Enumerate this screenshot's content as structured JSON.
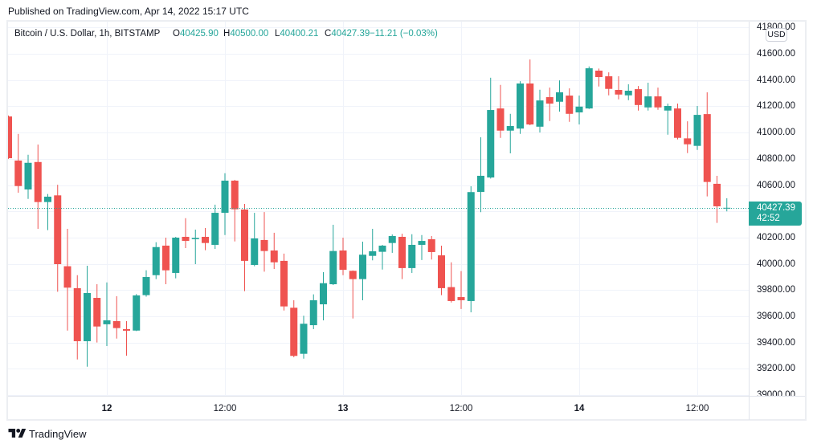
{
  "header": {
    "published": "Published on TradingView.com, Apr 14, 2022 15:17 UTC"
  },
  "legend": {
    "symbol": "Bitcoin / U.S. Dollar, 1h, BITSTAMP",
    "open_label": "O",
    "open": "40425.90",
    "high_label": "H",
    "high": "40500.00",
    "low_label": "L",
    "low": "40400.21",
    "close_label": "C",
    "close": "40427.39",
    "change": "−11.21 (−0.03%)"
  },
  "price_axis": {
    "currency": "USD",
    "last_price": "40427.39",
    "countdown": "42:52",
    "labels": [
      {
        "text": "41800.00",
        "value": 41800
      },
      {
        "text": "41600.00",
        "value": 41600
      },
      {
        "text": "41400.00",
        "value": 41400
      },
      {
        "text": "41200.00",
        "value": 41200
      },
      {
        "text": "41000.00",
        "value": 41000
      },
      {
        "text": "40800.00",
        "value": 40800
      },
      {
        "text": "40600.00",
        "value": 40600
      },
      {
        "text": "40200.00",
        "value": 40200
      },
      {
        "text": "40000.00",
        "value": 40000
      },
      {
        "text": "39800.00",
        "value": 39800
      },
      {
        "text": "39600.00",
        "value": 39600
      },
      {
        "text": "39400.00",
        "value": 39400
      },
      {
        "text": "39200.00",
        "value": 39200
      },
      {
        "text": "39000.00",
        "value": 39000
      }
    ]
  },
  "time_axis": {
    "labels": [
      {
        "text": "12",
        "index": 10,
        "kind": "day"
      },
      {
        "text": "12:00",
        "index": 22,
        "kind": "time"
      },
      {
        "text": "13",
        "index": 34,
        "kind": "day"
      },
      {
        "text": "12:00",
        "index": 46,
        "kind": "time"
      },
      {
        "text": "14",
        "index": 58,
        "kind": "day"
      },
      {
        "text": "12:00",
        "index": 70,
        "kind": "time"
      }
    ]
  },
  "footer": {
    "brand": "TradingView"
  },
  "colors": {
    "up": "#26a69a",
    "down": "#ef5350",
    "grid": "#f0f3fa",
    "border": "#e0e3eb",
    "text": "#131722"
  },
  "chart_data": {
    "type": "candlestick",
    "title": "Bitcoin / U.S. Dollar, 1h, BITSTAMP",
    "xlabel": "",
    "ylabel": "USD",
    "interval": "1h",
    "start": "Apr 11 14:00",
    "end": "Apr 14 15:00",
    "ylim": [
      38995,
      41845
    ],
    "yticks": [
      39000,
      39200,
      39400,
      39600,
      39800,
      40000,
      40200,
      40400,
      40600,
      40800,
      41000,
      41200,
      41400,
      41600,
      41800
    ],
    "xticks": [
      "12",
      "12:00",
      "13",
      "12:00",
      "14",
      "12:00"
    ],
    "grid": true,
    "last_price": 40427.39,
    "candle_format": [
      "open",
      "high",
      "low",
      "close"
    ],
    "candles": [
      [
        41123,
        41130,
        40800,
        40805
      ],
      [
        40787,
        40990,
        40542,
        40593
      ],
      [
        40567,
        40831,
        40495,
        40770
      ],
      [
        40776,
        40909,
        40267,
        40471
      ],
      [
        40471,
        40532,
        40257,
        40512
      ],
      [
        40522,
        40603,
        39788,
        39998
      ],
      [
        39982,
        40267,
        39492,
        39819
      ],
      [
        39815,
        39914,
        39272,
        39411
      ],
      [
        39411,
        39986,
        39217,
        39778
      ],
      [
        39741,
        39845,
        39401,
        39523
      ],
      [
        39540,
        39859,
        39374,
        39570
      ],
      [
        39564,
        39754,
        39431,
        39511
      ],
      [
        39503,
        39564,
        39301,
        39491
      ],
      [
        39492,
        39770,
        39488,
        39760
      ],
      [
        39762,
        39951,
        39750,
        39900
      ],
      [
        39914,
        40165,
        39884,
        40128
      ],
      [
        40139,
        40200,
        39845,
        39951
      ],
      [
        39931,
        40206,
        39890,
        40200
      ],
      [
        40206,
        40348,
        40120,
        40175
      ],
      [
        40188,
        40261,
        39998,
        40198
      ],
      [
        40206,
        40273,
        40104,
        40159
      ],
      [
        40145,
        40451,
        40114,
        40389
      ],
      [
        40389,
        40691,
        40220,
        40634
      ],
      [
        40634,
        40640,
        40171,
        40416
      ],
      [
        40414,
        40457,
        39792,
        40023
      ],
      [
        39992,
        40389,
        39982,
        40194
      ],
      [
        40182,
        40395,
        39941,
        40098
      ],
      [
        40102,
        40237,
        39961,
        40012
      ],
      [
        40023,
        40078,
        39645,
        39676
      ],
      [
        39666,
        39723,
        39289,
        39299
      ],
      [
        39315,
        39605,
        39278,
        39544
      ],
      [
        39533,
        39768,
        39503,
        39723
      ],
      [
        39692,
        39937,
        39570,
        39853
      ],
      [
        39845,
        40298,
        39839,
        40098
      ],
      [
        40102,
        40200,
        39914,
        39955
      ],
      [
        39947,
        39950,
        39584,
        39884
      ],
      [
        39884,
        40169,
        39723,
        40070
      ],
      [
        40061,
        40267,
        40027,
        40096
      ],
      [
        40092,
        40145,
        39957,
        40139
      ],
      [
        40159,
        40224,
        40084,
        40212
      ],
      [
        40206,
        40230,
        39884,
        39968
      ],
      [
        39968,
        40226,
        39931,
        40145
      ],
      [
        40145,
        40220,
        40029,
        40175
      ],
      [
        40188,
        40212,
        40033,
        40090
      ],
      [
        40065,
        40139,
        39762,
        39815
      ],
      [
        39823,
        40012,
        39706,
        39717
      ],
      [
        39747,
        39945,
        39656,
        39723
      ],
      [
        39717,
        40591,
        39631,
        40547
      ],
      [
        40548,
        40964,
        40394,
        40671
      ],
      [
        40658,
        41418,
        40650,
        41172
      ],
      [
        41184,
        41363,
        40960,
        41015
      ],
      [
        41015,
        41143,
        40842,
        41050
      ],
      [
        41031,
        41392,
        40990,
        41374
      ],
      [
        41374,
        41557,
        41056,
        41062
      ],
      [
        41045,
        41327,
        41001,
        41245
      ],
      [
        41270,
        41343,
        41088,
        41221
      ],
      [
        41235,
        41398,
        41160,
        41307
      ],
      [
        41282,
        41337,
        41082,
        41143
      ],
      [
        41154,
        41282,
        41062,
        41198
      ],
      [
        41184,
        41504,
        41180,
        41490
      ],
      [
        41472,
        41488,
        41351,
        41423
      ],
      [
        41429,
        41459,
        41284,
        41333
      ],
      [
        41325,
        41429,
        41253,
        41290
      ],
      [
        41284,
        41368,
        41247,
        41319
      ],
      [
        41331,
        41355,
        41168,
        41210
      ],
      [
        41192,
        41380,
        41168,
        41276
      ],
      [
        41276,
        41343,
        41174,
        41192
      ],
      [
        41168,
        41221,
        40984,
        41203
      ],
      [
        41184,
        41221,
        40948,
        40960
      ],
      [
        40956,
        41086,
        40844,
        40911
      ],
      [
        40899,
        41203,
        40868,
        41135
      ],
      [
        41141,
        41307,
        40514,
        40624
      ],
      [
        40610,
        40671,
        40312,
        40438.6
      ],
      [
        40425.9,
        40500,
        40400.21,
        40427.39
      ]
    ]
  }
}
